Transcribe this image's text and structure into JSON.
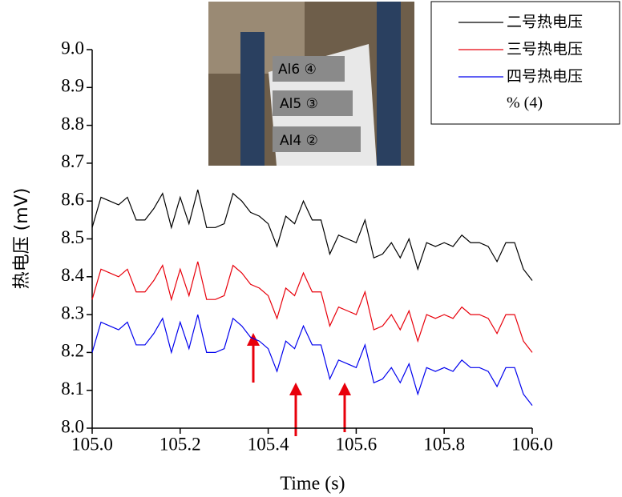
{
  "chart_data": {
    "type": "line",
    "x_label": "Time (s)",
    "y_label": "热电压 (mV)",
    "xlim": [
      105.0,
      106.0
    ],
    "ylim": [
      8.0,
      9.0
    ],
    "xticks": [
      {
        "value": 105.0,
        "label": "105.0"
      },
      105.2,
      105.4,
      105.6,
      105.8,
      {
        "value": 106.0,
        "label": "106.0"
      }
    ],
    "yticks": [
      {
        "value": 8.0,
        "label": "8.0"
      },
      8.1,
      8.2,
      8.3,
      8.4,
      8.5,
      8.6,
      8.7,
      8.8,
      8.9,
      {
        "value": 9.0,
        "label": "9.0"
      }
    ],
    "x": [
      105.0,
      105.02,
      105.04,
      105.06,
      105.08,
      105.1,
      105.12,
      105.14,
      105.16,
      105.18,
      105.2,
      105.22,
      105.24,
      105.26,
      105.28,
      105.3,
      105.32,
      105.34,
      105.36,
      105.38,
      105.4,
      105.42,
      105.44,
      105.46,
      105.48,
      105.5,
      105.52,
      105.54,
      105.56,
      105.58,
      105.6,
      105.62,
      105.64,
      105.66,
      105.68,
      105.7,
      105.72,
      105.74,
      105.76,
      105.78,
      105.8,
      105.82,
      105.84,
      105.86,
      105.88,
      105.9,
      105.92,
      105.94,
      105.96,
      105.98,
      106.0
    ],
    "series": [
      {
        "name": "二号热电压",
        "color": "#000000",
        "values": [
          8.53,
          8.61,
          8.6,
          8.59,
          8.61,
          8.55,
          8.55,
          8.58,
          8.62,
          8.53,
          8.61,
          8.54,
          8.63,
          8.53,
          8.53,
          8.54,
          8.62,
          8.6,
          8.57,
          8.56,
          8.54,
          8.48,
          8.56,
          8.54,
          8.6,
          8.55,
          8.55,
          8.46,
          8.51,
          8.5,
          8.49,
          8.55,
          8.45,
          8.46,
          8.49,
          8.45,
          8.5,
          8.42,
          8.49,
          8.48,
          8.49,
          8.48,
          8.51,
          8.49,
          8.49,
          8.48,
          8.44,
          8.49,
          8.49,
          8.42,
          8.39
        ]
      },
      {
        "name": "三号热电压",
        "color": "#e8000b",
        "values": [
          8.34,
          8.42,
          8.41,
          8.4,
          8.42,
          8.36,
          8.36,
          8.39,
          8.43,
          8.34,
          8.42,
          8.35,
          8.44,
          8.34,
          8.34,
          8.35,
          8.43,
          8.41,
          8.38,
          8.37,
          8.35,
          8.29,
          8.37,
          8.35,
          8.41,
          8.36,
          8.36,
          8.27,
          8.32,
          8.31,
          8.3,
          8.36,
          8.26,
          8.27,
          8.3,
          8.26,
          8.31,
          8.23,
          8.3,
          8.29,
          8.3,
          8.29,
          8.32,
          8.3,
          8.3,
          8.29,
          8.25,
          8.3,
          8.3,
          8.23,
          8.2
        ]
      },
      {
        "name": "四号热电压",
        "color": "#0000ee",
        "values": [
          8.2,
          8.28,
          8.27,
          8.26,
          8.28,
          8.22,
          8.22,
          8.25,
          8.29,
          8.2,
          8.28,
          8.21,
          8.3,
          8.2,
          8.2,
          8.21,
          8.29,
          8.27,
          8.24,
          8.23,
          8.21,
          8.15,
          8.23,
          8.21,
          8.27,
          8.22,
          8.22,
          8.13,
          8.18,
          8.17,
          8.16,
          8.22,
          8.12,
          8.13,
          8.16,
          8.12,
          8.17,
          8.09,
          8.16,
          8.15,
          8.16,
          8.15,
          8.18,
          8.16,
          8.16,
          8.15,
          8.11,
          8.16,
          8.16,
          8.09,
          8.06
        ]
      }
    ],
    "legend_note": "% (4)",
    "inset_labels": [
      "Al6 ④",
      "Al5 ③",
      "Al4 ②"
    ]
  }
}
